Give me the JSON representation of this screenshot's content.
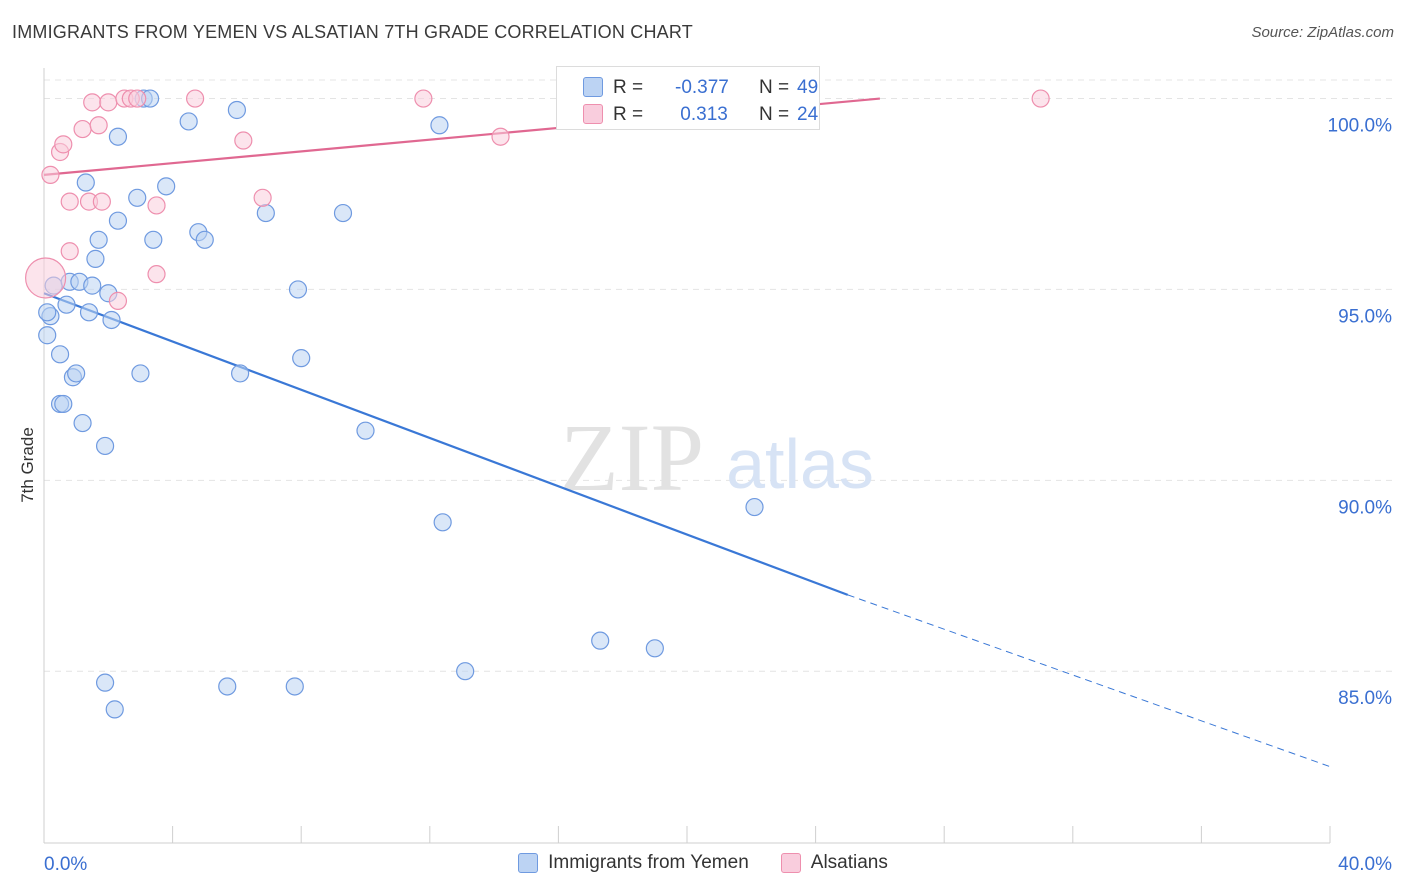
{
  "header": {
    "title": "IMMIGRANTS FROM YEMEN VS ALSATIAN 7TH GRADE CORRELATION CHART",
    "source": "Source: ZipAtlas.com"
  },
  "watermark": {
    "zip": "ZIP",
    "atlas": "atlas"
  },
  "stats": {
    "r_label": "R =",
    "n_label": "N =",
    "rows": [
      {
        "r": "-0.377",
        "n": "49",
        "color": "#a9c4ee",
        "border": "#6f9ae0"
      },
      {
        "r": " 0.313",
        "n": "24",
        "color": "#f6bfd1",
        "border": "#ee8fae"
      }
    ]
  },
  "chart_data": {
    "type": "scatter",
    "title": "IMMIGRANTS FROM YEMEN VS ALSATIAN 7TH GRADE CORRELATION CHART",
    "xlabel": "",
    "ylabel": "7th Grade",
    "xlim": [
      0,
      40
    ],
    "ylim": [
      80.5,
      100.8
    ],
    "x_tick_labels": [
      "0.0%",
      "40.0%"
    ],
    "y_ticks": [
      85,
      90,
      95,
      100
    ],
    "y_tick_labels": [
      "85.0%",
      "90.0%",
      "95.0%",
      "100.0%"
    ],
    "grid": "horizontal dashed",
    "legend": "bottom-center",
    "series": [
      {
        "name": "Immigrants from Yemen",
        "color": "#6f9ae0",
        "fill": "#bcd3f3",
        "line_color": "#3a78d6",
        "trend": {
          "x": [
            0,
            25
          ],
          "y": [
            94.9,
            87.0
          ],
          "dashed_to": [
            40,
            82.5
          ]
        },
        "points": [
          {
            "x": 0.1,
            "y": 93.8
          },
          {
            "x": 0.2,
            "y": 94.3
          },
          {
            "x": 0.3,
            "y": 95.1
          },
          {
            "x": 0.5,
            "y": 92.0
          },
          {
            "x": 0.5,
            "y": 93.3
          },
          {
            "x": 0.6,
            "y": 92.0
          },
          {
            "x": 0.7,
            "y": 94.6
          },
          {
            "x": 0.8,
            "y": 95.2
          },
          {
            "x": 0.9,
            "y": 92.7
          },
          {
            "x": 1.0,
            "y": 92.8
          },
          {
            "x": 1.1,
            "y": 95.2
          },
          {
            "x": 1.2,
            "y": 91.5
          },
          {
            "x": 1.3,
            "y": 97.8
          },
          {
            "x": 1.4,
            "y": 94.4
          },
          {
            "x": 1.5,
            "y": 95.1
          },
          {
            "x": 1.6,
            "y": 95.8
          },
          {
            "x": 1.7,
            "y": 96.3
          },
          {
            "x": 1.9,
            "y": 90.9
          },
          {
            "x": 1.9,
            "y": 84.7
          },
          {
            "x": 2.0,
            "y": 94.9
          },
          {
            "x": 2.1,
            "y": 94.2
          },
          {
            "x": 2.2,
            "y": 84.0
          },
          {
            "x": 2.3,
            "y": 96.8
          },
          {
            "x": 2.3,
            "y": 99.0
          },
          {
            "x": 2.9,
            "y": 97.4
          },
          {
            "x": 3.0,
            "y": 92.8
          },
          {
            "x": 3.1,
            "y": 100.0
          },
          {
            "x": 3.3,
            "y": 100.0
          },
          {
            "x": 3.4,
            "y": 96.3
          },
          {
            "x": 3.8,
            "y": 97.7
          },
          {
            "x": 4.5,
            "y": 99.4
          },
          {
            "x": 4.8,
            "y": 96.5
          },
          {
            "x": 5.0,
            "y": 96.3
          },
          {
            "x": 5.7,
            "y": 84.6
          },
          {
            "x": 6.0,
            "y": 99.7
          },
          {
            "x": 6.1,
            "y": 92.8
          },
          {
            "x": 6.9,
            "y": 97.0
          },
          {
            "x": 7.8,
            "y": 84.6
          },
          {
            "x": 7.9,
            "y": 95.0
          },
          {
            "x": 8.0,
            "y": 93.2
          },
          {
            "x": 9.3,
            "y": 97.0
          },
          {
            "x": 10.0,
            "y": 91.3
          },
          {
            "x": 12.3,
            "y": 99.3
          },
          {
            "x": 12.4,
            "y": 88.9
          },
          {
            "x": 13.1,
            "y": 85.0
          },
          {
            "x": 17.3,
            "y": 85.8
          },
          {
            "x": 19.0,
            "y": 85.6
          },
          {
            "x": 22.1,
            "y": 89.3
          },
          {
            "x": 0.1,
            "y": 94.4
          }
        ]
      },
      {
        "name": "Alsatians",
        "color": "#ee8fae",
        "fill": "#f9cddd",
        "line_color": "#e06891",
        "trend": {
          "x": [
            0,
            26
          ],
          "y": [
            98.0,
            100.0
          ]
        },
        "points": [
          {
            "x": 0.05,
            "y": 95.3,
            "big": true
          },
          {
            "x": 0.2,
            "y": 98.0
          },
          {
            "x": 0.5,
            "y": 98.6
          },
          {
            "x": 0.6,
            "y": 98.8
          },
          {
            "x": 0.8,
            "y": 96.0
          },
          {
            "x": 0.8,
            "y": 97.3
          },
          {
            "x": 1.2,
            "y": 99.2
          },
          {
            "x": 1.4,
            "y": 97.3
          },
          {
            "x": 1.5,
            "y": 99.9
          },
          {
            "x": 1.7,
            "y": 99.3
          },
          {
            "x": 1.8,
            "y": 97.3
          },
          {
            "x": 2.0,
            "y": 99.9
          },
          {
            "x": 2.3,
            "y": 94.7
          },
          {
            "x": 2.5,
            "y": 100.0
          },
          {
            "x": 2.7,
            "y": 100.0
          },
          {
            "x": 2.9,
            "y": 100.0
          },
          {
            "x": 3.5,
            "y": 95.4
          },
          {
            "x": 3.5,
            "y": 97.2
          },
          {
            "x": 4.7,
            "y": 100.0
          },
          {
            "x": 6.2,
            "y": 98.9
          },
          {
            "x": 6.8,
            "y": 97.4
          },
          {
            "x": 11.8,
            "y": 100.0
          },
          {
            "x": 14.2,
            "y": 99.0
          },
          {
            "x": 31.0,
            "y": 100.0
          }
        ]
      }
    ]
  }
}
